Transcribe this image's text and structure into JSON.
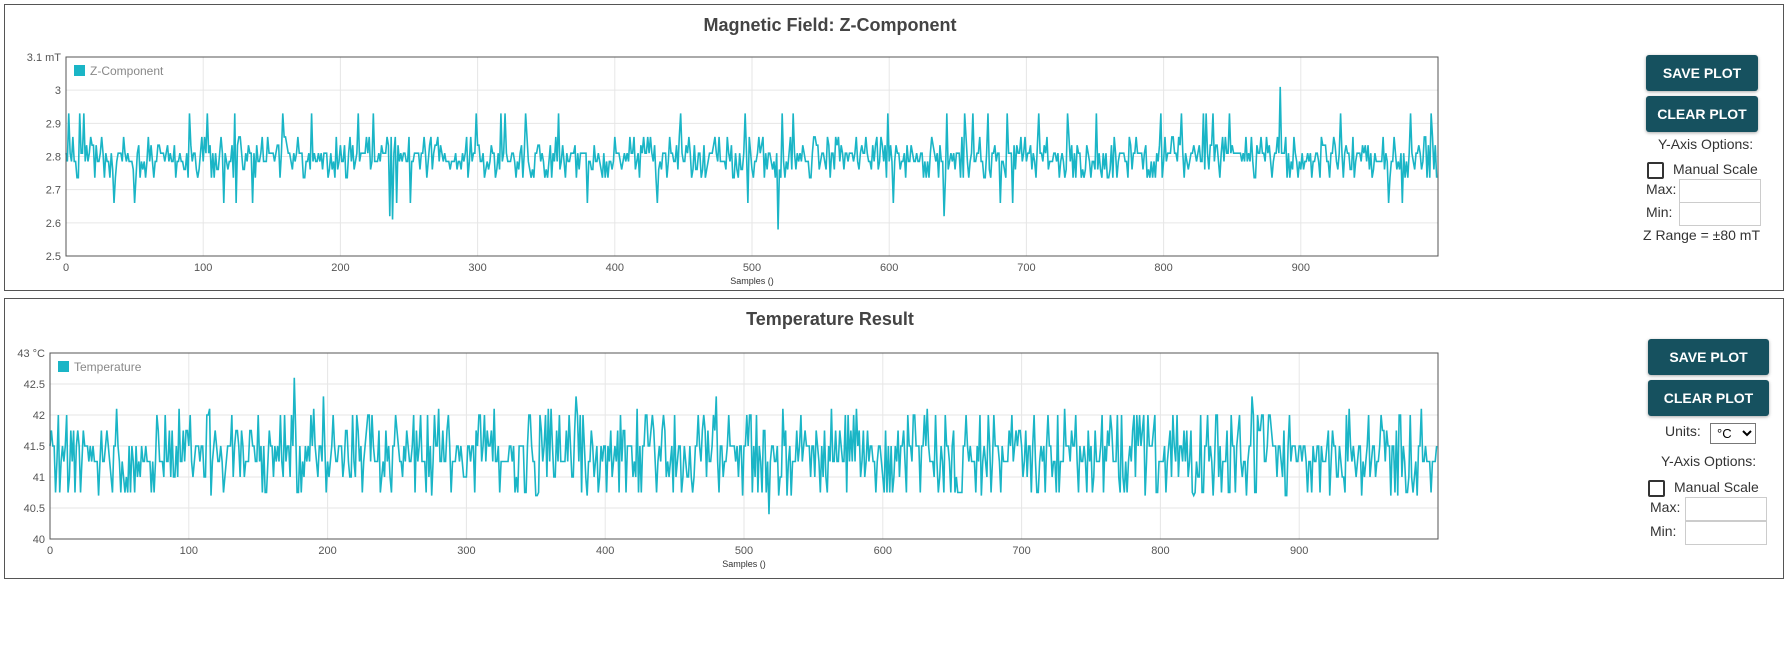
{
  "colors": {
    "series": "#1ab5c6",
    "button_bg": "#16515f",
    "grid": "#e6e6e6",
    "frame": "#555555"
  },
  "panels": [
    {
      "title": "Magnetic Field: Z-Component",
      "save_label": "SAVE PLOT",
      "clear_label": "CLEAR PLOT",
      "y_axis_options_label": "Y-Axis Options:",
      "manual_scale_label": "Manual Scale",
      "max_label": "Max:",
      "min_label": "Min:",
      "max_value": "",
      "min_value": "",
      "range_note": "Z Range = ±80 mT"
    },
    {
      "title": "Temperature Result",
      "save_label": "SAVE PLOT",
      "clear_label": "CLEAR PLOT",
      "units_label": "Units:",
      "units_selected": "°C",
      "y_axis_options_label": "Y-Axis Options:",
      "manual_scale_label": "Manual Scale",
      "max_label": "Max:",
      "min_label": "Min:",
      "max_value": "",
      "min_value": ""
    }
  ],
  "chart_data": [
    {
      "type": "line",
      "title": "Magnetic Field: Z-Component",
      "xlabel": "Samples ()",
      "ylabel": "",
      "unit": "mT",
      "xlim": [
        0,
        1000
      ],
      "ylim": [
        2.5,
        3.1
      ],
      "x_ticks": [
        0,
        100,
        200,
        300,
        400,
        500,
        600,
        700,
        800,
        900
      ],
      "y_ticks": [
        2.5,
        2.6,
        2.7,
        2.8,
        2.9,
        3,
        3.1
      ],
      "y_tick_labels": [
        "2.5",
        "2.6",
        "2.7",
        "2.8",
        "2.9",
        "3",
        "3.1 mT"
      ],
      "legend": "Z-Component",
      "grid": true,
      "series": [
        {
          "name": "Z-Component",
          "sample_count": 1000,
          "levels": [
            2.736,
            2.761,
            2.785,
            2.81,
            2.834,
            2.859
          ],
          "base_level": 2.785,
          "range_typical": [
            2.66,
            2.93
          ],
          "spikes": [
            {
              "x": 236,
              "y": 2.62
            },
            {
              "x": 238,
              "y": 2.61
            },
            {
              "x": 519,
              "y": 2.58
            },
            {
              "x": 640,
              "y": 2.62
            },
            {
              "x": 885,
              "y": 3.01
            },
            {
              "x": 13,
              "y": 2.93
            },
            {
              "x": 90,
              "y": 2.93
            },
            {
              "x": 179,
              "y": 2.93
            },
            {
              "x": 655,
              "y": 2.93
            }
          ]
        }
      ]
    },
    {
      "type": "line",
      "title": "Temperature Result",
      "xlabel": "Samples ()",
      "ylabel": "",
      "unit": "°C",
      "xlim": [
        0,
        1000
      ],
      "ylim": [
        40,
        43
      ],
      "x_ticks": [
        0,
        100,
        200,
        300,
        400,
        500,
        600,
        700,
        800,
        900
      ],
      "y_ticks": [
        40,
        40.5,
        41,
        41.5,
        42,
        42.5,
        43
      ],
      "y_tick_labels": [
        "40",
        "40.5",
        "41",
        "41.5",
        "42",
        "42.5",
        "43 °C"
      ],
      "legend": "Temperature",
      "grid": true,
      "series": [
        {
          "name": "Temperature",
          "sample_count": 1000,
          "levels": [
            40.75,
            41.0,
            41.25,
            41.5,
            41.75,
            42.0
          ],
          "base_level": 41.4,
          "range_typical": [
            40.7,
            42.1
          ],
          "spikes": [
            {
              "x": 176,
              "y": 42.6
            },
            {
              "x": 197,
              "y": 42.3
            },
            {
              "x": 379,
              "y": 42.3
            },
            {
              "x": 480,
              "y": 42.3
            },
            {
              "x": 866,
              "y": 42.3
            },
            {
              "x": 518,
              "y": 40.4
            },
            {
              "x": 35,
              "y": 40.7
            },
            {
              "x": 890,
              "y": 40.7
            }
          ]
        }
      ]
    }
  ]
}
